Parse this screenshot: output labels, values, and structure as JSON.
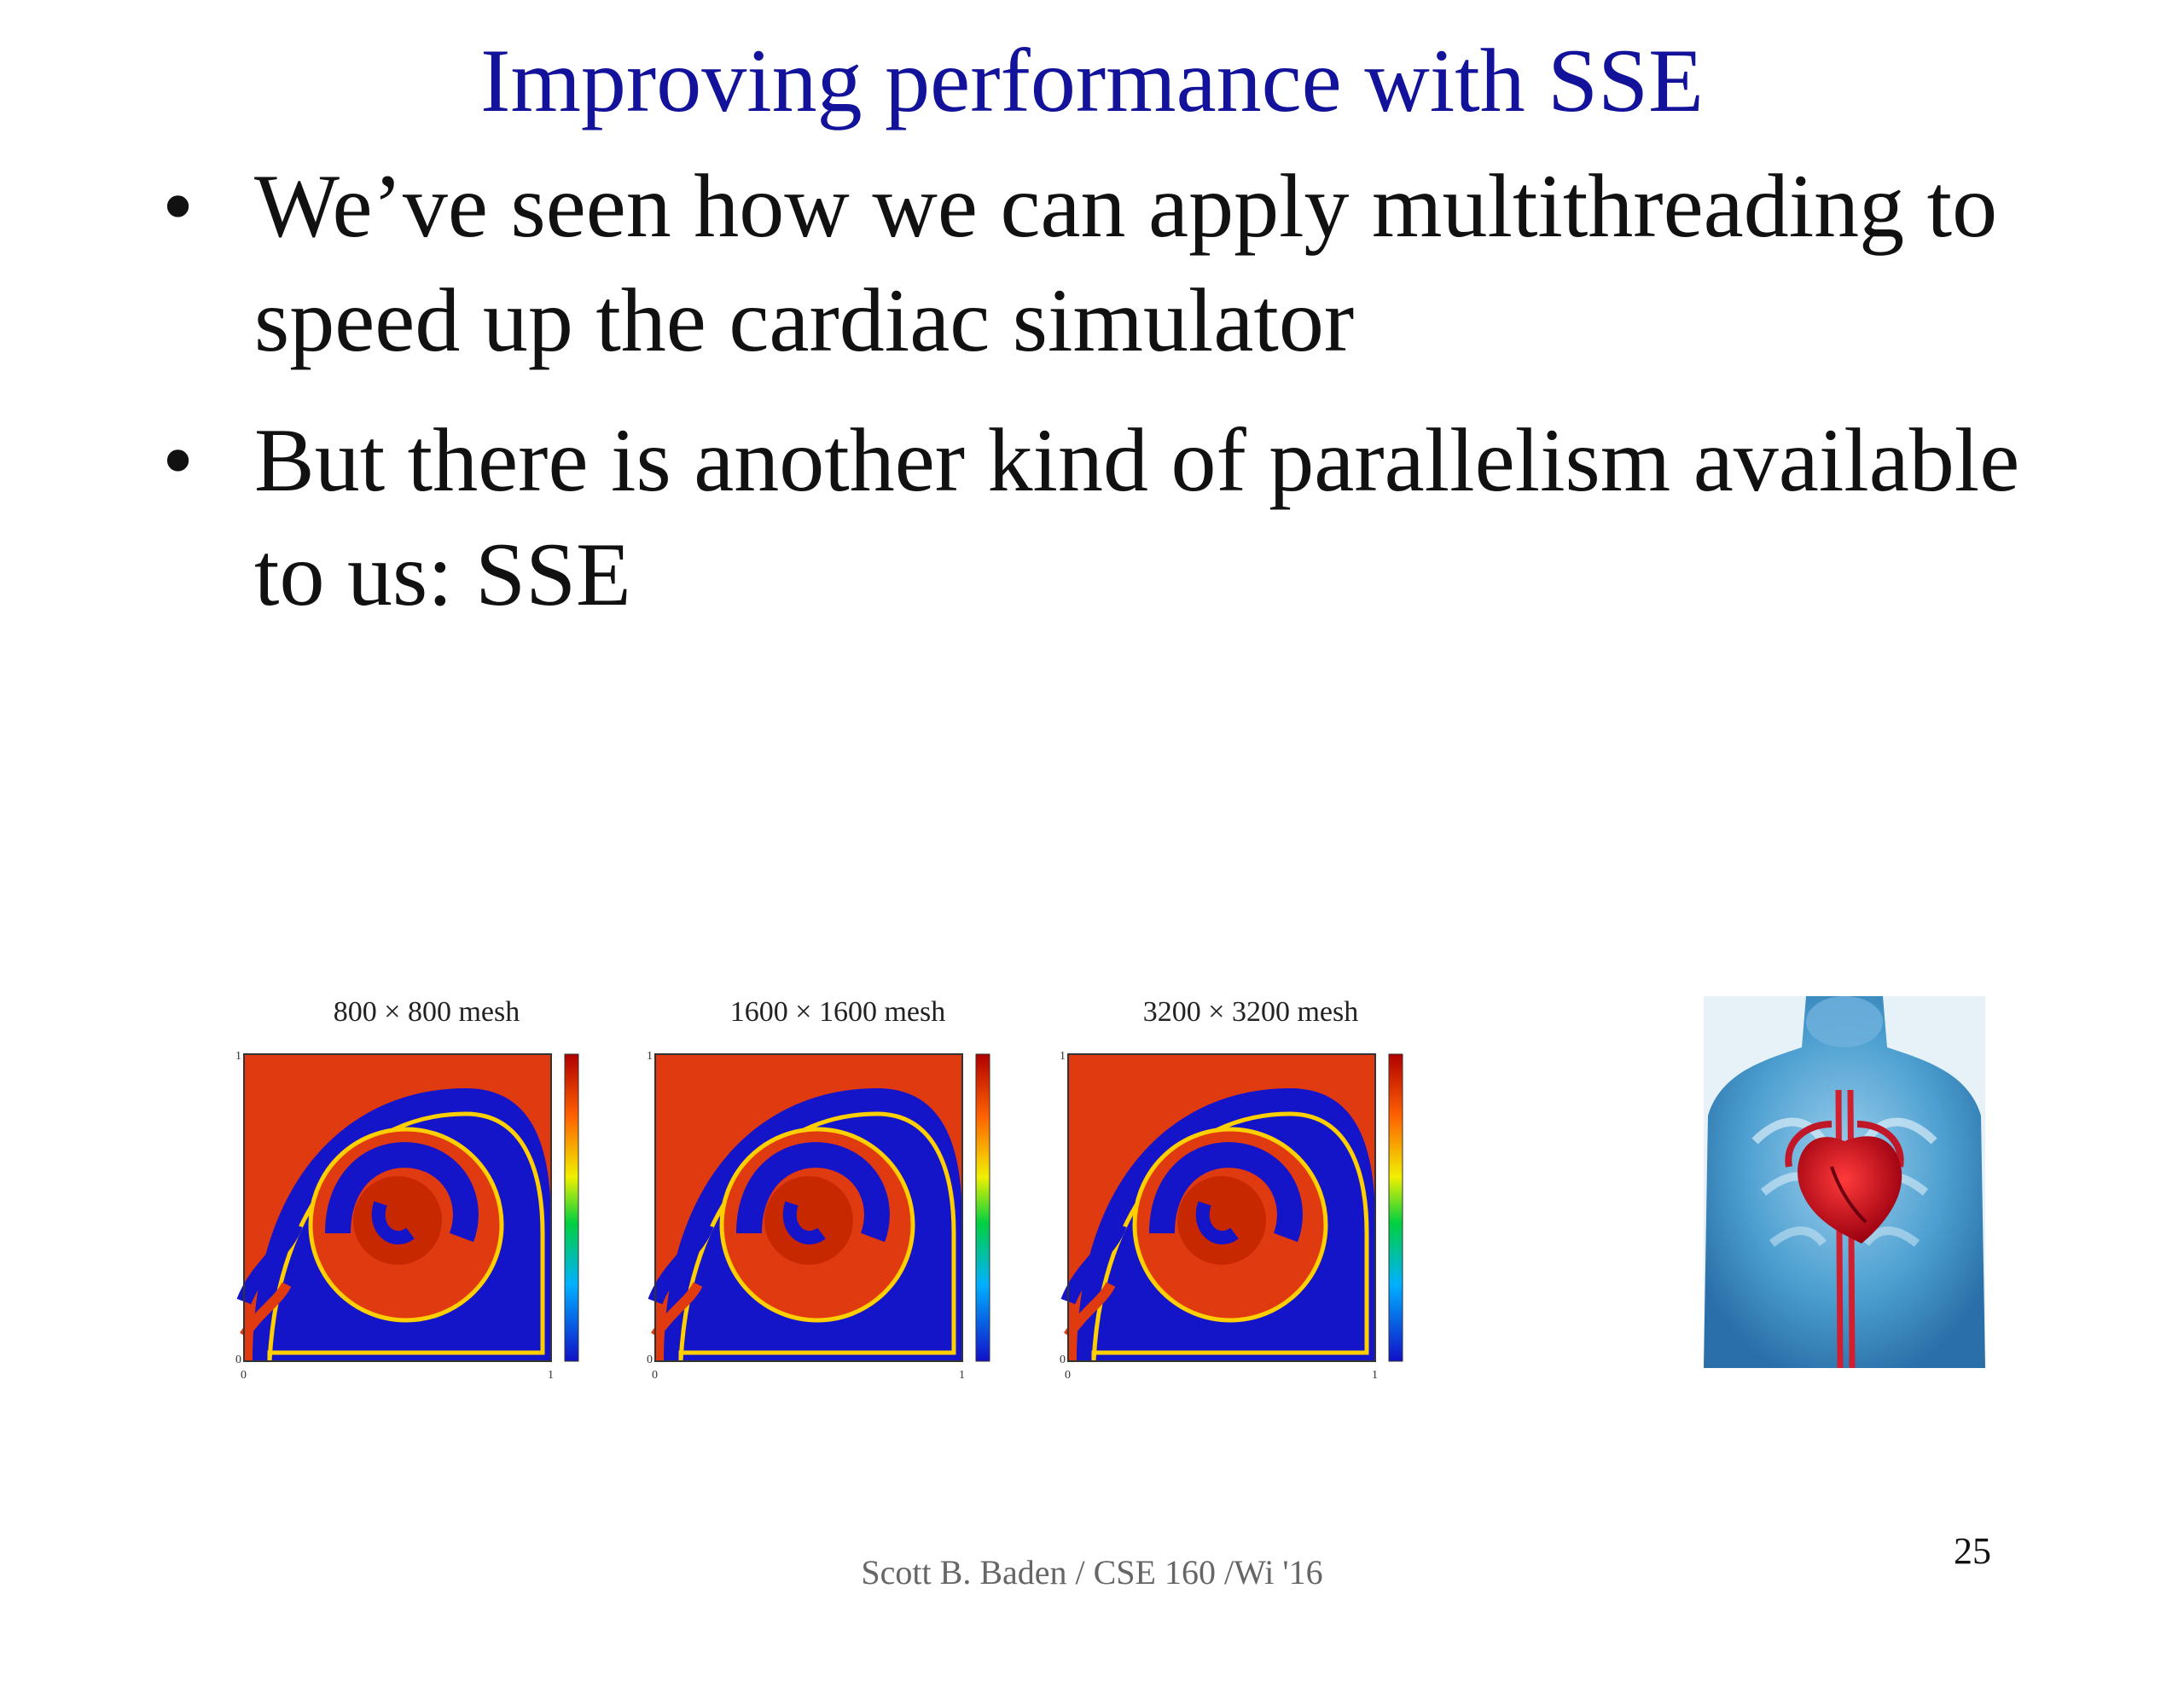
{
  "slide": {
    "title": "Improving performance with  SSE",
    "bullets": [
      {
        "marker": "•",
        "text": "We’ve seen how we can apply multithreading to speed up the cardiac  simulator"
      },
      {
        "marker": "•",
        "text": "But there is another kind of parallelism available to us:  SSE"
      }
    ],
    "figures": [
      {
        "caption": "800 × 800 mesh",
        "x_ticks": [
          "0",
          "1"
        ],
        "y_ticks": [
          "0",
          "1"
        ]
      },
      {
        "caption": "1600 × 1600 mesh",
        "x_ticks": [
          "0",
          "1"
        ],
        "y_ticks": [
          "0",
          "1"
        ]
      },
      {
        "caption": "3200 × 3200 mesh",
        "x_ticks": [
          "0",
          "1"
        ],
        "y_ticks": [
          "0",
          "1"
        ]
      }
    ],
    "heart_image": "human-torso-heart-illustration",
    "footer": "Scott B. Baden / CSE 160 /Wi '16",
    "page_number": "25"
  }
}
